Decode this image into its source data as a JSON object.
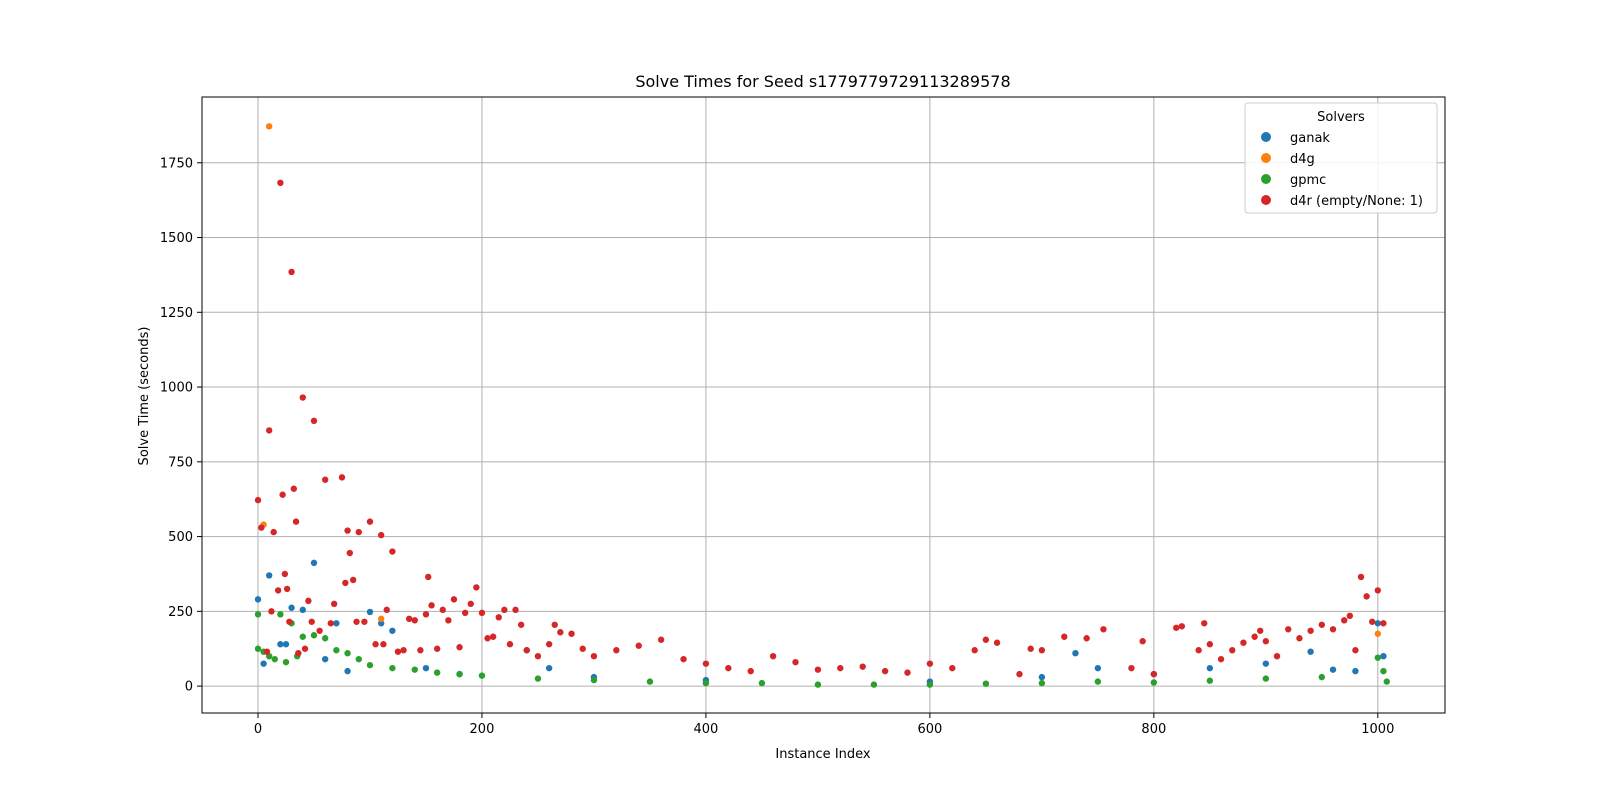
{
  "chart_data": {
    "type": "scatter",
    "title": "Solve Times for Seed s1779779729113289578",
    "xlabel": "Instance Index",
    "ylabel": "Solve Time (seconds)",
    "xlim": [
      -50,
      1060
    ],
    "ylim": [
      -90,
      1970
    ],
    "xticks": [
      0,
      200,
      400,
      600,
      800,
      1000
    ],
    "yticks": [
      0,
      250,
      500,
      750,
      1000,
      1250,
      1500,
      1750
    ],
    "grid": true,
    "legend": {
      "title": "Solvers",
      "placement": "top-right"
    },
    "series": [
      {
        "name": "ganak",
        "color": "#1f77b4",
        "points": [
          [
            0,
            290
          ],
          [
            5,
            75
          ],
          [
            10,
            370
          ],
          [
            20,
            140
          ],
          [
            25,
            140
          ],
          [
            30,
            262
          ],
          [
            40,
            255
          ],
          [
            50,
            412
          ],
          [
            60,
            90
          ],
          [
            70,
            210
          ],
          [
            80,
            50
          ],
          [
            100,
            248
          ],
          [
            110,
            210
          ],
          [
            120,
            185
          ],
          [
            150,
            60
          ],
          [
            180,
            40
          ],
          [
            240,
            120
          ],
          [
            260,
            60
          ],
          [
            300,
            30
          ],
          [
            400,
            20
          ],
          [
            600,
            15
          ],
          [
            700,
            30
          ],
          [
            730,
            110
          ],
          [
            750,
            60
          ],
          [
            800,
            40
          ],
          [
            850,
            60
          ],
          [
            900,
            75
          ],
          [
            940,
            115
          ],
          [
            960,
            55
          ],
          [
            980,
            50
          ],
          [
            1000,
            210
          ],
          [
            1005,
            100
          ]
        ]
      },
      {
        "name": "d4g",
        "color": "#ff7f0e",
        "points": [
          [
            5,
            540
          ],
          [
            10,
            1872
          ],
          [
            110,
            225
          ],
          [
            1000,
            175
          ]
        ]
      },
      {
        "name": "gpmc",
        "color": "#2ca02c",
        "points": [
          [
            0,
            240
          ],
          [
            0,
            125
          ],
          [
            5,
            115
          ],
          [
            10,
            100
          ],
          [
            15,
            90
          ],
          [
            20,
            240
          ],
          [
            25,
            80
          ],
          [
            30,
            210
          ],
          [
            35,
            100
          ],
          [
            40,
            165
          ],
          [
            50,
            170
          ],
          [
            60,
            160
          ],
          [
            70,
            120
          ],
          [
            80,
            110
          ],
          [
            90,
            90
          ],
          [
            100,
            70
          ],
          [
            120,
            60
          ],
          [
            140,
            55
          ],
          [
            160,
            45
          ],
          [
            180,
            40
          ],
          [
            200,
            35
          ],
          [
            250,
            25
          ],
          [
            300,
            20
          ],
          [
            350,
            15
          ],
          [
            400,
            10
          ],
          [
            450,
            10
          ],
          [
            500,
            5
          ],
          [
            550,
            5
          ],
          [
            600,
            5
          ],
          [
            650,
            8
          ],
          [
            700,
            10
          ],
          [
            750,
            15
          ],
          [
            800,
            12
          ],
          [
            850,
            18
          ],
          [
            900,
            25
          ],
          [
            950,
            30
          ],
          [
            1000,
            95
          ],
          [
            1005,
            50
          ],
          [
            1008,
            15
          ]
        ]
      },
      {
        "name": "d4r (empty/None: 1)",
        "color": "#d62728",
        "points": [
          [
            0,
            622
          ],
          [
            3,
            530
          ],
          [
            8,
            115
          ],
          [
            10,
            855
          ],
          [
            12,
            250
          ],
          [
            14,
            515
          ],
          [
            18,
            320
          ],
          [
            20,
            1683
          ],
          [
            22,
            640
          ],
          [
            24,
            375
          ],
          [
            26,
            325
          ],
          [
            28,
            215
          ],
          [
            30,
            1385
          ],
          [
            32,
            660
          ],
          [
            34,
            550
          ],
          [
            36,
            110
          ],
          [
            40,
            965
          ],
          [
            42,
            125
          ],
          [
            45,
            285
          ],
          [
            48,
            215
          ],
          [
            50,
            887
          ],
          [
            55,
            185
          ],
          [
            60,
            690
          ],
          [
            65,
            210
          ],
          [
            68,
            275
          ],
          [
            75,
            698
          ],
          [
            78,
            345
          ],
          [
            80,
            520
          ],
          [
            82,
            445
          ],
          [
            85,
            355
          ],
          [
            88,
            215
          ],
          [
            90,
            515
          ],
          [
            95,
            215
          ],
          [
            100,
            550
          ],
          [
            105,
            140
          ],
          [
            110,
            505
          ],
          [
            112,
            140
          ],
          [
            115,
            255
          ],
          [
            120,
            450
          ],
          [
            125,
            115
          ],
          [
            130,
            120
          ],
          [
            135,
            225
          ],
          [
            140,
            220
          ],
          [
            145,
            120
          ],
          [
            150,
            240
          ],
          [
            152,
            365
          ],
          [
            155,
            270
          ],
          [
            160,
            125
          ],
          [
            165,
            255
          ],
          [
            170,
            220
          ],
          [
            175,
            290
          ],
          [
            180,
            130
          ],
          [
            185,
            245
          ],
          [
            190,
            275
          ],
          [
            195,
            330
          ],
          [
            200,
            245
          ],
          [
            205,
            160
          ],
          [
            210,
            165
          ],
          [
            215,
            230
          ],
          [
            220,
            255
          ],
          [
            225,
            140
          ],
          [
            230,
            255
          ],
          [
            235,
            205
          ],
          [
            240,
            120
          ],
          [
            250,
            100
          ],
          [
            260,
            140
          ],
          [
            265,
            205
          ],
          [
            270,
            180
          ],
          [
            280,
            175
          ],
          [
            290,
            125
          ],
          [
            300,
            100
          ],
          [
            320,
            120
          ],
          [
            340,
            135
          ],
          [
            360,
            155
          ],
          [
            380,
            90
          ],
          [
            400,
            75
          ],
          [
            420,
            60
          ],
          [
            440,
            50
          ],
          [
            460,
            100
          ],
          [
            480,
            80
          ],
          [
            500,
            55
          ],
          [
            520,
            60
          ],
          [
            540,
            65
          ],
          [
            560,
            50
          ],
          [
            580,
            45
          ],
          [
            600,
            75
          ],
          [
            620,
            60
          ],
          [
            640,
            120
          ],
          [
            650,
            155
          ],
          [
            660,
            145
          ],
          [
            680,
            40
          ],
          [
            690,
            125
          ],
          [
            700,
            120
          ],
          [
            720,
            165
          ],
          [
            740,
            160
          ],
          [
            755,
            190
          ],
          [
            780,
            60
          ],
          [
            790,
            150
          ],
          [
            800,
            40
          ],
          [
            820,
            195
          ],
          [
            825,
            200
          ],
          [
            840,
            120
          ],
          [
            845,
            210
          ],
          [
            850,
            140
          ],
          [
            860,
            90
          ],
          [
            870,
            120
          ],
          [
            880,
            145
          ],
          [
            890,
            165
          ],
          [
            895,
            185
          ],
          [
            900,
            150
          ],
          [
            910,
            100
          ],
          [
            920,
            190
          ],
          [
            930,
            160
          ],
          [
            940,
            185
          ],
          [
            950,
            205
          ],
          [
            960,
            190
          ],
          [
            970,
            220
          ],
          [
            975,
            235
          ],
          [
            980,
            120
          ],
          [
            985,
            365
          ],
          [
            990,
            300
          ],
          [
            995,
            215
          ],
          [
            1000,
            320
          ],
          [
            1005,
            210
          ]
        ]
      }
    ]
  }
}
